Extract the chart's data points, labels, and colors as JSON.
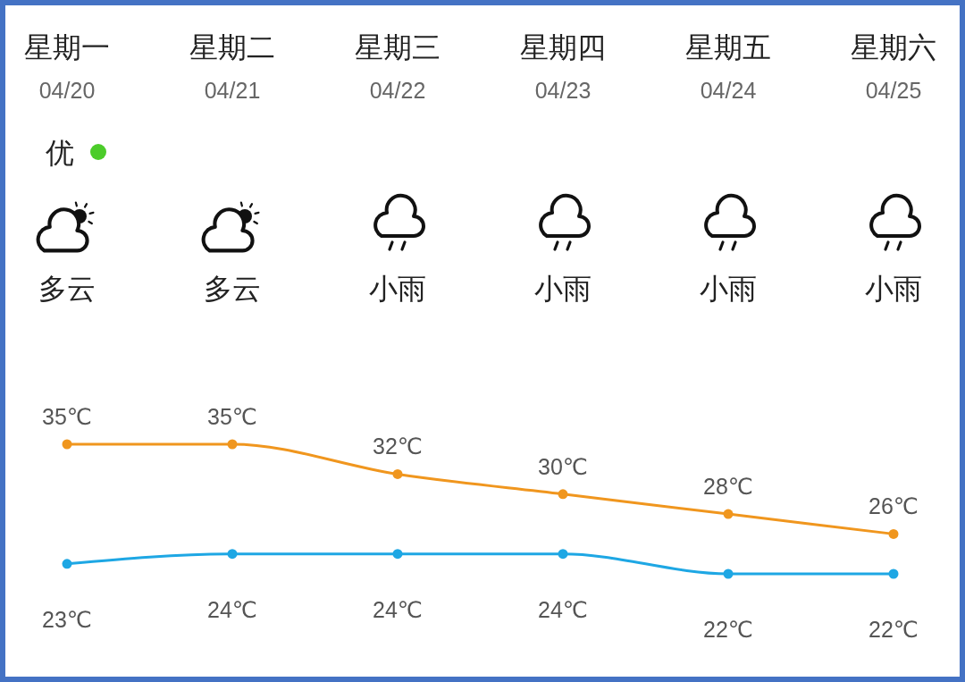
{
  "chart_data": {
    "type": "line",
    "categories": [
      "星期一\n04/20",
      "星期二\n04/21",
      "星期三\n04/22",
      "星期四\n04/23",
      "星期五\n04/24",
      "星期六\n04/25"
    ],
    "series": [
      {
        "color": "#f0961e",
        "values": [
          35,
          35,
          32,
          30,
          28,
          26
        ],
        "value_labels": [
          "35℃",
          "35℃",
          "32℃",
          "30℃",
          "28℃",
          "26℃"
        ]
      },
      {
        "color": "#1ea7e4",
        "values": [
          23,
          24,
          24,
          24,
          22,
          22
        ],
        "value_labels": [
          "23℃",
          "24℃",
          "24℃",
          "24℃",
          "22℃",
          "22℃"
        ]
      }
    ],
    "annotations": [
      "优",
      "多云",
      "多云",
      "小雨",
      "小雨",
      "小雨",
      "小雨"
    ],
    "marker": "circle"
  }
}
